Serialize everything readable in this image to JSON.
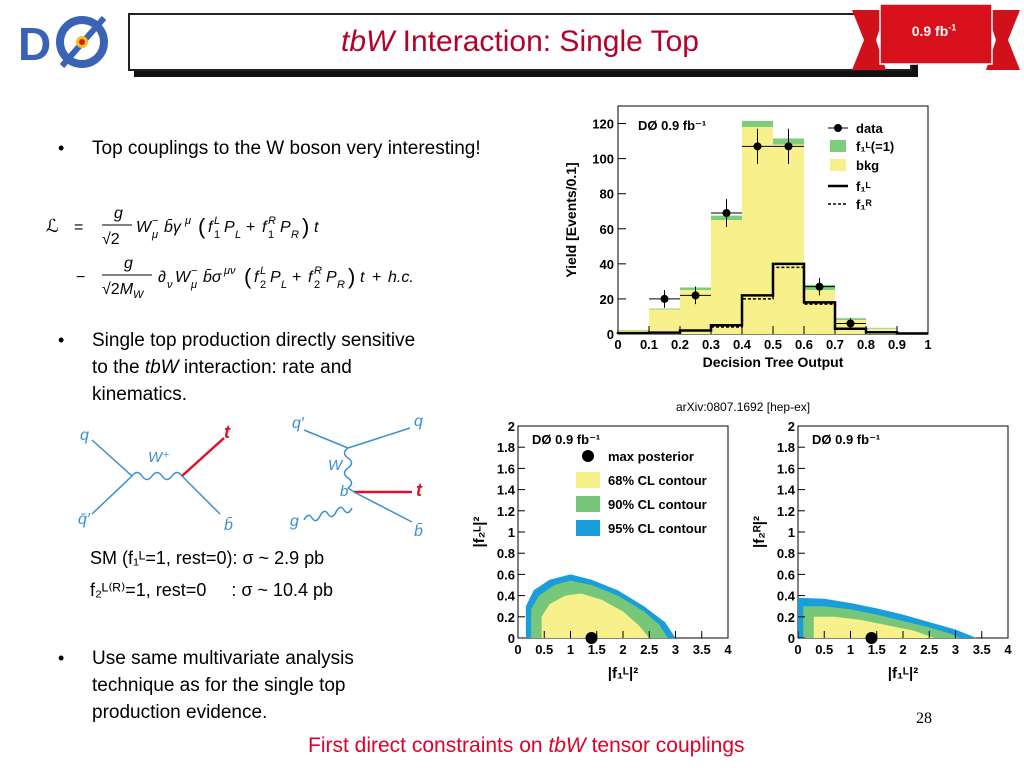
{
  "header": {
    "title_italic": "tbW",
    "title_rest": " Interaction: Single Top",
    "ribbon_label": "0.9 fb",
    "ribbon_sup": "-1"
  },
  "bullets": [
    {
      "text": "Top couplings to the W boson very interesting!"
    },
    {
      "line1": "Single top production directly sensitive",
      "line2_pre": "to the ",
      "line2_italic": "tbW",
      "line2_post": " interaction: rate and",
      "line3": "kinematics."
    },
    {
      "line1": "Use same multivariate analysis",
      "line2": "technique as for the single top",
      "line3": "production evidence."
    }
  ],
  "sm_lines": {
    "line1": "SM (f₁ᴸ=1, rest=0): σ ~ 2.9 pb",
    "line2": "f₂ᴸ⁽ᴿ⁾=1, rest=0     : σ ~ 10.4 pb"
  },
  "feynman": {
    "left": {
      "q": "q",
      "qbar_prime": "q̄′",
      "W": "W⁺",
      "t": "t",
      "bbar": "b̄"
    },
    "right": {
      "q_prime": "q′",
      "q": "q",
      "W": "W",
      "b": "b",
      "t": "t",
      "g": "g",
      "bbar": "b̄"
    }
  },
  "arxiv": "arXiv:0807.1692 [hep-ex]",
  "page_number": "28",
  "caption": {
    "pre": "First direct constraints on ",
    "italic": "tbW",
    "post": " tensor couplings"
  },
  "chart_data": [
    {
      "type": "bar",
      "title": "DØ 0.9 fb⁻¹",
      "xlabel": "Decision Tree Output",
      "ylabel": "Yield [Events/0.1]",
      "xlim": [
        0,
        1
      ],
      "ylim": [
        0,
        130
      ],
      "xticks": [
        "0",
        "0.1",
        "0.2",
        "0.3",
        "0.4",
        "0.5",
        "0.6",
        "0.7",
        "0.8",
        "0.9",
        "1"
      ],
      "yticks": [
        "0",
        "20",
        "40",
        "60",
        "80",
        "100",
        "120"
      ],
      "bin_edges": [
        0,
        0.1,
        0.2,
        0.3,
        0.4,
        0.5,
        0.6,
        0.7,
        0.8,
        0.9,
        1.0
      ],
      "series": [
        {
          "name": "bkg",
          "color": "#f8f08a",
          "values": [
            2,
            14,
            25,
            65,
            118,
            108,
            25,
            8,
            3,
            1
          ]
        },
        {
          "name": "f₁ᴸ(=1)",
          "color": "#7ccd7c",
          "values": [
            0.3,
            0.5,
            1.5,
            2.5,
            3.5,
            3.5,
            3,
            1,
            0.5,
            0.2
          ]
        },
        {
          "name": "f₁ᴸ",
          "style": "solid",
          "values": [
            0.5,
            0.8,
            2,
            5,
            22,
            40,
            18,
            3,
            1,
            0.3
          ]
        },
        {
          "name": "f₁ᴿ",
          "style": "dashed",
          "values": [
            0.5,
            0.8,
            2,
            4,
            20,
            38,
            17,
            3,
            1,
            0.3
          ]
        }
      ],
      "data_points": {
        "name": "data",
        "x": [
          0.15,
          0.25,
          0.35,
          0.45,
          0.55,
          0.65,
          0.75
        ],
        "y": [
          20,
          22,
          69,
          107,
          107,
          27,
          6
        ],
        "err": [
          5,
          5,
          8,
          10,
          10,
          5,
          3
        ]
      },
      "legend": [
        "data",
        "f₁ᴸ(=1)",
        "bkg",
        "f₁ᴸ",
        "f₁ᴿ"
      ]
    },
    {
      "type": "area",
      "title": "DØ 0.9 fb⁻¹",
      "xlabel": "|f₁ᴸ|²",
      "ylabel": "|f₂ᴸ|²",
      "xlim": [
        0,
        4
      ],
      "ylim": [
        0,
        2
      ],
      "xticks": [
        "0",
        "0.5",
        "1",
        "1.5",
        "2",
        "2.5",
        "3",
        "3.5",
        "4"
      ],
      "yticks": [
        "0",
        "0.2",
        "0.4",
        "0.6",
        "0.8",
        "1",
        "1.2",
        "1.4",
        "1.6",
        "1.8",
        "2"
      ],
      "max_posterior": [
        1.4,
        0
      ],
      "contours": [
        {
          "name": "95% CL contour",
          "color": "#1a9ddb",
          "points": [
            [
              0.15,
              0
            ],
            [
              0.15,
              0.3
            ],
            [
              0.3,
              0.45
            ],
            [
              0.6,
              0.55
            ],
            [
              1.0,
              0.6
            ],
            [
              1.4,
              0.55
            ],
            [
              1.9,
              0.45
            ],
            [
              2.4,
              0.3
            ],
            [
              2.8,
              0.15
            ],
            [
              3.0,
              0
            ]
          ]
        },
        {
          "name": "90% CL contour",
          "color": "#77c77a",
          "points": [
            [
              0.25,
              0
            ],
            [
              0.25,
              0.27
            ],
            [
              0.4,
              0.4
            ],
            [
              0.7,
              0.5
            ],
            [
              1.0,
              0.54
            ],
            [
              1.4,
              0.5
            ],
            [
              1.9,
              0.4
            ],
            [
              2.4,
              0.25
            ],
            [
              2.7,
              0.12
            ],
            [
              2.85,
              0
            ]
          ]
        },
        {
          "name": "68% CL contour",
          "color": "#f8f08a",
          "points": [
            [
              0.45,
              0
            ],
            [
              0.45,
              0.2
            ],
            [
              0.6,
              0.32
            ],
            [
              0.9,
              0.4
            ],
            [
              1.2,
              0.42
            ],
            [
              1.6,
              0.36
            ],
            [
              2.0,
              0.25
            ],
            [
              2.3,
              0.12
            ],
            [
              2.5,
              0
            ]
          ]
        }
      ],
      "legend": [
        "max posterior",
        "68% CL contour",
        "90% CL contour",
        "95% CL contour"
      ]
    },
    {
      "type": "area",
      "title": "DØ 0.9 fb⁻¹",
      "xlabel": "|f₁ᴸ|²",
      "ylabel": "|f₂ᴿ|²",
      "xlim": [
        0,
        4
      ],
      "ylim": [
        0,
        2
      ],
      "xticks": [
        "0",
        "0.5",
        "1",
        "1.5",
        "2",
        "2.5",
        "3",
        "3.5",
        "4"
      ],
      "yticks": [
        "0",
        "0.2",
        "0.4",
        "0.6",
        "0.8",
        "1",
        "1.2",
        "1.4",
        "1.6",
        "1.8",
        "2"
      ],
      "max_posterior": [
        1.4,
        0
      ],
      "contours": [
        {
          "name": "95% CL contour",
          "color": "#1a9ddb",
          "points": [
            [
              0,
              0
            ],
            [
              0,
              0.38
            ],
            [
              0.5,
              0.37
            ],
            [
              1.0,
              0.33
            ],
            [
              1.5,
              0.28
            ],
            [
              2.0,
              0.22
            ],
            [
              2.5,
              0.15
            ],
            [
              3.0,
              0.08
            ],
            [
              3.4,
              0
            ]
          ]
        },
        {
          "name": "90% CL contour",
          "color": "#77c77a",
          "points": [
            [
              0.1,
              0
            ],
            [
              0.1,
              0.3
            ],
            [
              0.5,
              0.3
            ],
            [
              1.0,
              0.27
            ],
            [
              1.5,
              0.22
            ],
            [
              2.0,
              0.16
            ],
            [
              2.5,
              0.1
            ],
            [
              2.9,
              0.04
            ],
            [
              3.1,
              0
            ]
          ]
        },
        {
          "name": "68% CL contour",
          "color": "#f8f08a",
          "points": [
            [
              0.3,
              0
            ],
            [
              0.3,
              0.2
            ],
            [
              0.7,
              0.2
            ],
            [
              1.2,
              0.17
            ],
            [
              1.7,
              0.12
            ],
            [
              2.2,
              0.07
            ],
            [
              2.6,
              0
            ]
          ]
        }
      ]
    }
  ]
}
